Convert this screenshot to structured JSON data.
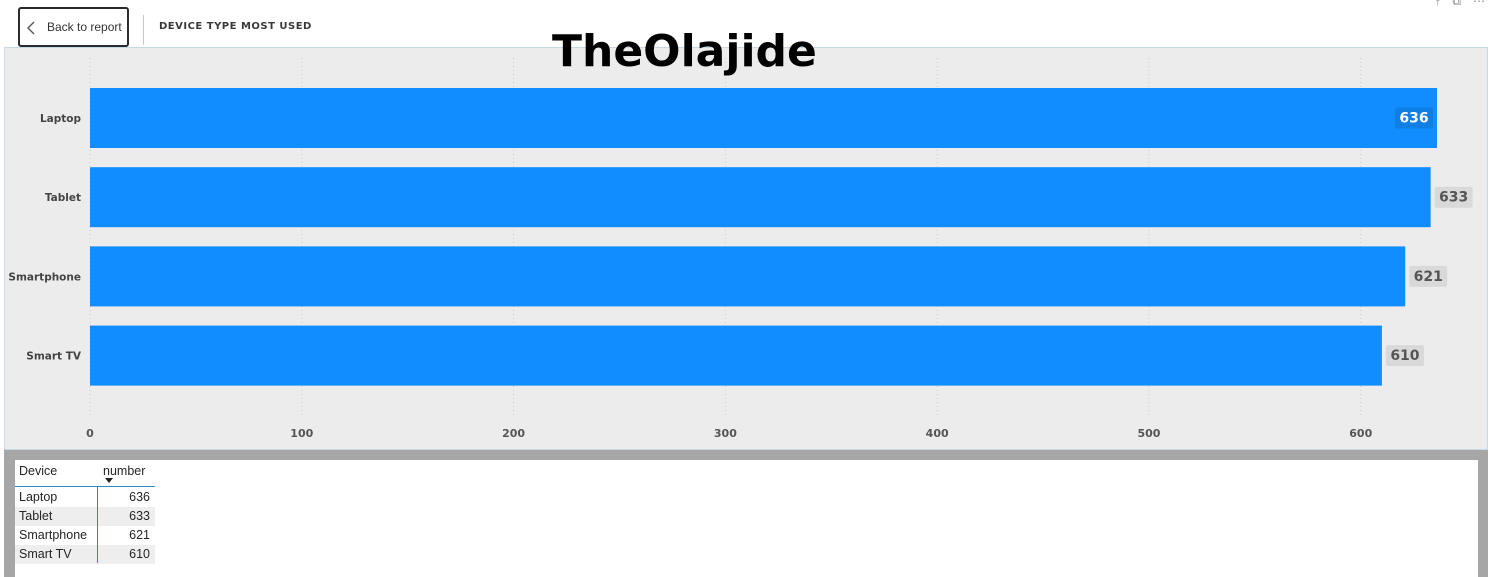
{
  "header": {
    "back_label": "Back to report",
    "title": "DEVICE TYPE MOST USED"
  },
  "watermark": "TheOlajide",
  "chart_data": {
    "type": "bar",
    "orientation": "horizontal",
    "categories": [
      "Laptop",
      "Tablet",
      "Smartphone",
      "Smart TV"
    ],
    "values": [
      636,
      633,
      621,
      610
    ],
    "xlim": [
      0,
      636
    ],
    "xticks": [
      0,
      100,
      200,
      300,
      400,
      500,
      600
    ],
    "title": "",
    "xlabel": "",
    "ylabel": "",
    "grid": true,
    "bar_color": "#118dff",
    "background": "#ececec"
  },
  "table": {
    "columns": [
      "Device",
      "number"
    ],
    "rows": [
      {
        "device": "Laptop",
        "number": "636"
      },
      {
        "device": "Tablet",
        "number": "633"
      },
      {
        "device": "Smartphone",
        "number": "621"
      },
      {
        "device": "Smart TV",
        "number": "610"
      }
    ]
  },
  "colors": {
    "accent": "#118dff",
    "table_rule": "#2a8ab8",
    "frame": "#a6a6a6"
  }
}
